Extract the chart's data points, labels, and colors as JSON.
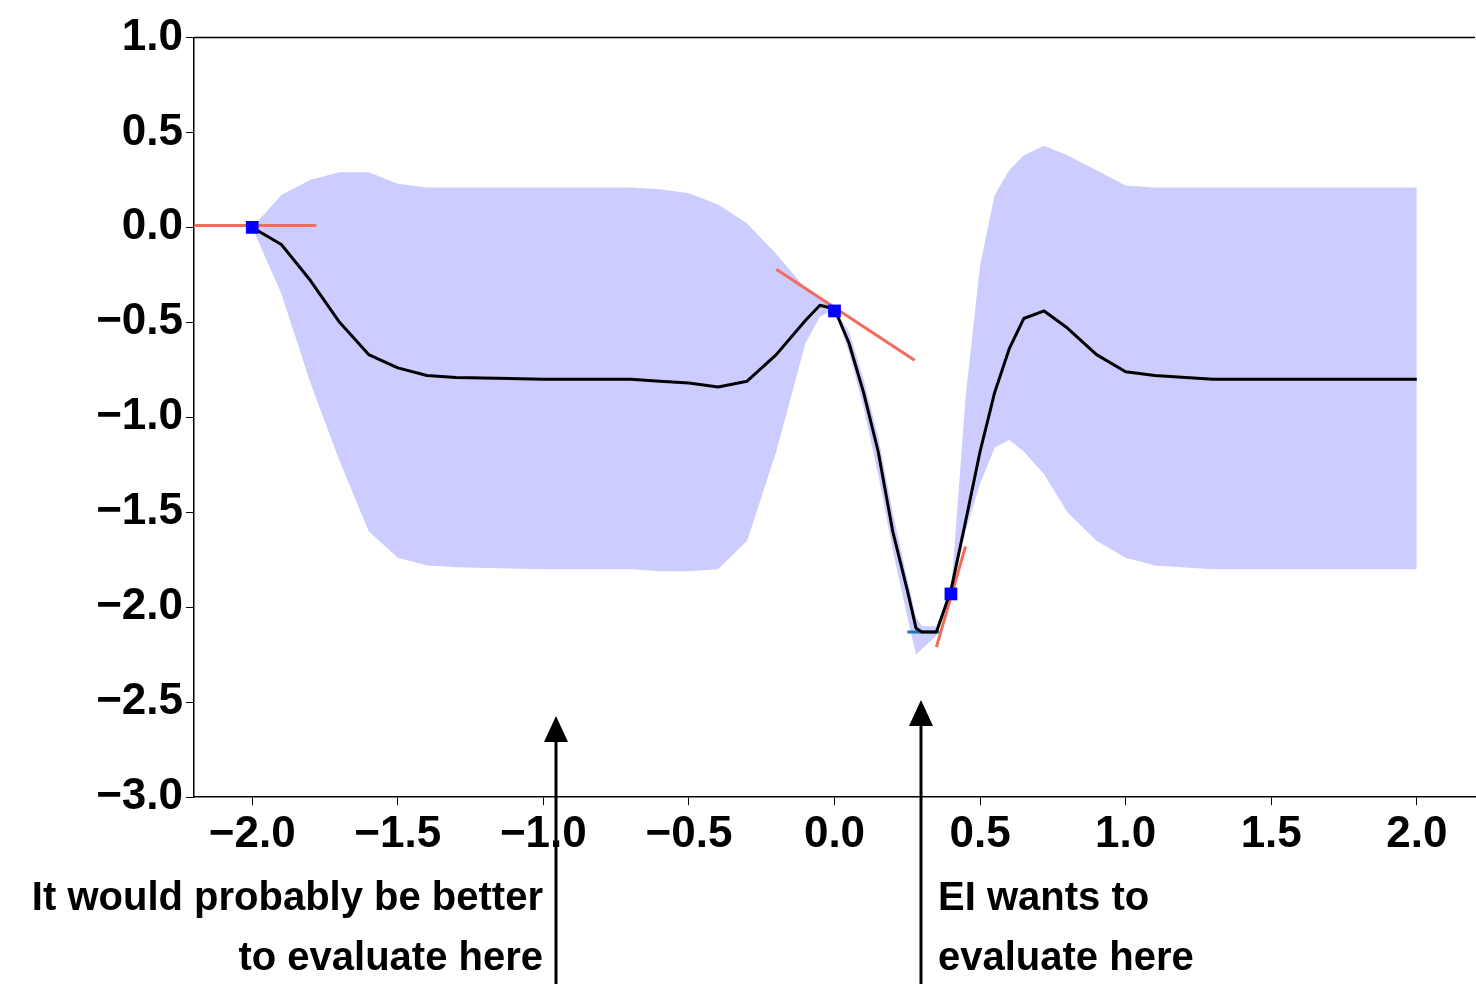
{
  "chart_data": {
    "type": "line",
    "xlim": [
      -2.2,
      2.2
    ],
    "ylim": [
      -3,
      1
    ],
    "xticks": [
      {
        "value": -2,
        "label": "−2.0"
      },
      {
        "value": -1.5,
        "label": "−1.5"
      },
      {
        "value": -1,
        "label": "−1.0"
      },
      {
        "value": -0.5,
        "label": "−0.5"
      },
      {
        "value": 0,
        "label": "0.0"
      },
      {
        "value": 0.5,
        "label": "0.5"
      },
      {
        "value": 1,
        "label": "1.0"
      },
      {
        "value": 1.5,
        "label": "1.5"
      },
      {
        "value": 2,
        "label": "2.0"
      }
    ],
    "yticks": [
      {
        "value": -3,
        "label": "−3.0"
      },
      {
        "value": -2.5,
        "label": "−2.5"
      },
      {
        "value": -2,
        "label": "−2.0"
      },
      {
        "value": -1.5,
        "label": "−1.5"
      },
      {
        "value": -1,
        "label": "−1.0"
      },
      {
        "value": -0.5,
        "label": "−0.5"
      },
      {
        "value": 0,
        "label": "0.0"
      },
      {
        "value": 0.5,
        "label": "0.5"
      },
      {
        "value": 1,
        "label": "1.0"
      }
    ],
    "grid": false,
    "legend": false,
    "line_style": "solid",
    "series": [
      {
        "color": "#000000",
        "x": [
          -2.0,
          -1.9,
          -1.8,
          -1.7,
          -1.6,
          -1.5,
          -1.4,
          -1.3,
          -1.0,
          -0.7,
          -0.6,
          -0.5,
          -0.4,
          -0.3,
          -0.2,
          -0.1,
          -0.05,
          0,
          0.05,
          0.1,
          0.15,
          0.2,
          0.25,
          0.28,
          0.3,
          0.35,
          0.4,
          0.45,
          0.5,
          0.55,
          0.6,
          0.65,
          0.72,
          0.8,
          0.9,
          1.0,
          1.1,
          1.3,
          1.6,
          2.0
        ],
        "values": [
          0.0,
          -0.09,
          -0.28,
          -0.5,
          -0.67,
          -0.74,
          -0.78,
          -0.79,
          -0.8,
          -0.8,
          -0.81,
          -0.82,
          -0.84,
          -0.81,
          -0.67,
          -0.49,
          -0.41,
          -0.43,
          -0.61,
          -0.87,
          -1.18,
          -1.6,
          -1.91,
          -2.11,
          -2.13,
          -2.13,
          -1.91,
          -1.55,
          -1.18,
          -0.87,
          -0.64,
          -0.48,
          -0.44,
          -0.53,
          -0.67,
          -0.76,
          -0.78,
          -0.8,
          -0.8,
          -0.8
        ],
        "upper": [
          0.0,
          0.17,
          0.25,
          0.29,
          0.29,
          0.23,
          0.21,
          0.21,
          0.21,
          0.21,
          0.2,
          0.18,
          0.12,
          0.02,
          -0.14,
          -0.32,
          -0.38,
          -0.43,
          -0.55,
          -0.8,
          -1.1,
          -1.5,
          -1.85,
          -2.05,
          -2.1,
          -2.1,
          -1.93,
          -0.9,
          -0.2,
          0.17,
          0.3,
          0.38,
          0.43,
          0.38,
          0.3,
          0.22,
          0.21,
          0.21,
          0.21,
          0.21
        ],
        "lower": [
          0.0,
          -0.35,
          -0.82,
          -1.23,
          -1.6,
          -1.74,
          -1.78,
          -1.79,
          -1.8,
          -1.8,
          -1.81,
          -1.81,
          -1.8,
          -1.65,
          -1.18,
          -0.61,
          -0.47,
          -0.43,
          -0.66,
          -0.95,
          -1.3,
          -1.7,
          -2.05,
          -2.25,
          -2.22,
          -2.15,
          -1.93,
          -1.6,
          -1.35,
          -1.16,
          -1.12,
          -1.18,
          -1.3,
          -1.5,
          -1.65,
          -1.74,
          -1.78,
          -1.8,
          -1.8,
          -1.8
        ]
      },
      {
        "type": "scatter",
        "color": "#0000ff",
        "marker": "square",
        "x": [
          -2.0,
          0.0,
          0.4
        ],
        "values": [
          0.0,
          -0.44,
          -1.93
        ]
      },
      {
        "type": "line",
        "color": "#f46a5b",
        "x": [
          -2.2,
          -1.78
        ],
        "values": [
          0.01,
          0.01
        ]
      },
      {
        "type": "line",
        "color": "#f46a5b",
        "x": [
          -0.2,
          0.275
        ],
        "values": [
          -0.22,
          -0.7
        ]
      },
      {
        "type": "line",
        "color": "#f46a5b",
        "x": [
          0.35,
          0.45
        ],
        "values": [
          -2.21,
          -1.68
        ]
      },
      {
        "type": "line",
        "color": "#1f77b4",
        "x": [
          0.25,
          0.36
        ],
        "values": [
          -2.13,
          -2.13
        ]
      }
    ],
    "annotations": [
      "It would probably be better to evaluate here",
      "EI wants to evaluate here"
    ]
  }
}
